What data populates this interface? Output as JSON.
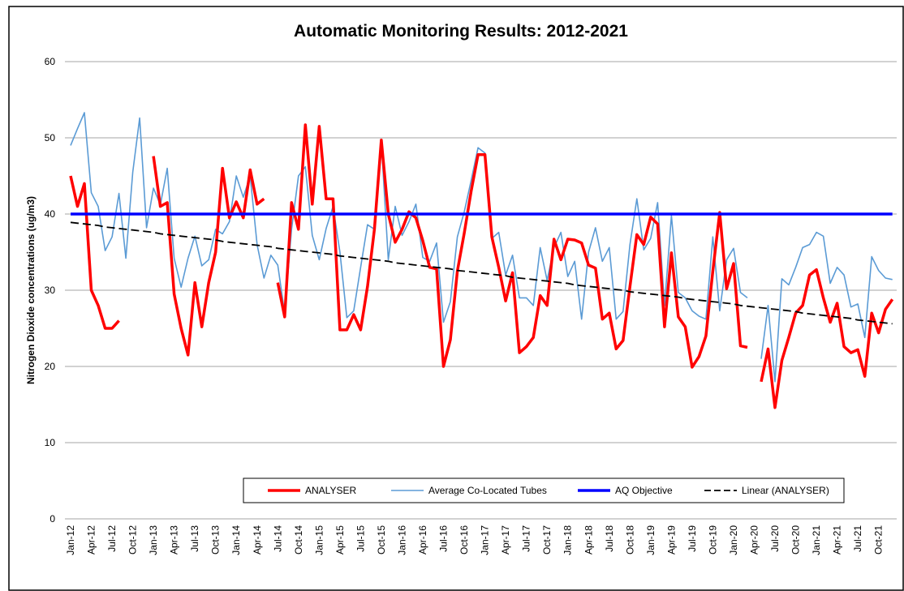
{
  "chart_data": {
    "type": "line",
    "title": "Automatic Monitoring Results:  2012-2021",
    "y_label": "Nitrogen Dioxide concentrations (ug/m3)",
    "categories": [
      "Jan-12",
      null,
      null,
      "Apr-12",
      null,
      null,
      "Jul-12",
      null,
      null,
      "Oct-12",
      null,
      null,
      "Jan-13",
      null,
      null,
      "Apr-13",
      null,
      null,
      "Jul-13",
      null,
      null,
      "Oct-13",
      null,
      null,
      "Jan-14",
      null,
      null,
      "Apr-14",
      null,
      null,
      "Jul-14",
      null,
      null,
      "Oct-14",
      null,
      null,
      "Jan-15",
      null,
      null,
      "Apr-15",
      null,
      null,
      "Jul-15",
      null,
      null,
      "Oct-15",
      null,
      null,
      "Jan-16",
      null,
      null,
      "Apr-16",
      null,
      null,
      "Jul-16",
      null,
      null,
      "Oct-16",
      null,
      null,
      "Jan-17",
      null,
      null,
      "Apr-17",
      null,
      null,
      "Jul-17",
      null,
      null,
      "Oct-17",
      null,
      null,
      "Jan-18",
      null,
      null,
      "Apr-18",
      null,
      null,
      "Jul-18",
      null,
      null,
      "Oct-18",
      null,
      null,
      "Jan-19",
      null,
      null,
      "Apr-19",
      null,
      null,
      "Jul-19",
      null,
      null,
      "Oct-19",
      null,
      null,
      "Jan-20",
      null,
      null,
      "Apr-20",
      null,
      null,
      "Jul-20",
      null,
      null,
      "Oct-20",
      null,
      null,
      "Jan-21",
      null,
      null,
      "Apr-21",
      null,
      null,
      "Jul-21",
      null,
      null,
      "Oct-21",
      null,
      null
    ],
    "series": [
      {
        "name": "ANALYSER",
        "color": "#ff0000",
        "width": 3.5,
        "dashed": false,
        "values": [
          45,
          41,
          44,
          30,
          28,
          25,
          25,
          26,
          null,
          null,
          null,
          null,
          47.6,
          41,
          41.5,
          29.5,
          25,
          21.5,
          31,
          25.2,
          31,
          35,
          46,
          39.5,
          41.6,
          39.5,
          45.8,
          41.3,
          42,
          null,
          31,
          26.5,
          41.5,
          38,
          51.7,
          41.3,
          51.5,
          42,
          42,
          24.8,
          24.8,
          26.8,
          24.8,
          30.5,
          38,
          49.7,
          40,
          36.3,
          38,
          40.3,
          39.5,
          36.5,
          33,
          32.8,
          20,
          23.5,
          32.5,
          37.5,
          43,
          47.8,
          47.8,
          37,
          33,
          28.6,
          32.3,
          21.8,
          22.6,
          23.8,
          29.3,
          28,
          36.7,
          34,
          36.7,
          36.6,
          36.2,
          33.3,
          32.9,
          26.2,
          27,
          22.3,
          23.4,
          30.5,
          37.3,
          36,
          39.6,
          38.7,
          25.2,
          34.9,
          26.5,
          25.2,
          19.9,
          21.3,
          24,
          32.5,
          40.2,
          30.2,
          33.5,
          22.7,
          22.5,
          null,
          18,
          22.3,
          14.6,
          20.8,
          23.8,
          27,
          28,
          32,
          32.7,
          29,
          25.8,
          28.3,
          22.6,
          21.8,
          22.2,
          18.7,
          27,
          24.4,
          27.5,
          28.8
        ]
      },
      {
        "name": "Average Co-Located Tubes",
        "color": "#5b9bd5",
        "width": 1.6,
        "dashed": false,
        "values": [
          49,
          51.2,
          53.3,
          42.8,
          41,
          35.2,
          37,
          42.7,
          34.2,
          45.5,
          52.6,
          38.2,
          43.4,
          41.2,
          46,
          34.2,
          30.4,
          34.2,
          37.1,
          33.2,
          34,
          38,
          37.4,
          39,
          45,
          42.2,
          45,
          36,
          31.6,
          34.6,
          33.3,
          27,
          38,
          45,
          46.2,
          37.2,
          34,
          38.1,
          41,
          35,
          26.4,
          27.3,
          33,
          38.6,
          38,
          49.5,
          34,
          41,
          37.2,
          39,
          41.3,
          34.3,
          33.8,
          36.2,
          25.8,
          28.5,
          37,
          40.3,
          44.4,
          48.7,
          48,
          36.8,
          37.6,
          32,
          34.6,
          29,
          29,
          28,
          35.6,
          31.3,
          35.6,
          37.6,
          31.8,
          33.8,
          26.2,
          35,
          38.2,
          33.8,
          35.6,
          26.2,
          27.2,
          36,
          42,
          35.3,
          36.8,
          41.5,
          28,
          39.8,
          29.7,
          29,
          27.3,
          26.6,
          26.2,
          37,
          27.3,
          34,
          35.5,
          29.7,
          29,
          null,
          21,
          28,
          18,
          31.5,
          30.7,
          33,
          35.6,
          36,
          37.6,
          37.1,
          30.9,
          33,
          32,
          27.8,
          28.2,
          23.8,
          34.4,
          32.6,
          31.6,
          31.4
        ]
      },
      {
        "name": "AQ Objective",
        "color": "#0000ff",
        "width": 3.5,
        "dashed": false,
        "values": [
          40,
          40,
          40,
          40,
          40,
          40,
          40,
          40,
          40,
          40,
          40,
          40,
          40,
          40,
          40,
          40,
          40,
          40,
          40,
          40,
          40,
          40,
          40,
          40,
          40,
          40,
          40,
          40,
          40,
          40,
          40,
          40,
          40,
          40,
          40,
          40,
          40,
          40,
          40,
          40,
          40,
          40,
          40,
          40,
          40,
          40,
          40,
          40,
          40,
          40,
          40,
          40,
          40,
          40,
          40,
          40,
          40,
          40,
          40,
          40,
          40,
          40,
          40,
          40,
          40,
          40,
          40,
          40,
          40,
          40,
          40,
          40,
          40,
          40,
          40,
          40,
          40,
          40,
          40,
          40,
          40,
          40,
          40,
          40,
          40,
          40,
          40,
          40,
          40,
          40,
          40,
          40,
          40,
          40,
          40,
          40,
          40,
          40,
          40,
          40,
          40,
          40,
          40,
          40,
          40,
          40,
          40,
          40,
          40,
          40,
          40,
          40,
          40,
          40,
          40,
          40,
          40,
          40,
          40,
          40
        ]
      },
      {
        "name": "Linear (ANALYSER)",
        "color": "#000000",
        "width": 1.8,
        "dashed": true,
        "values": [
          38.9,
          38.8,
          38.7,
          38.6,
          38.5,
          38.3,
          38.2,
          38.1,
          38.0,
          37.9,
          37.8,
          37.7,
          37.6,
          37.4,
          37.3,
          37.2,
          37.1,
          37.0,
          36.9,
          36.8,
          36.7,
          36.6,
          36.4,
          36.3,
          36.2,
          36.1,
          36.0,
          35.9,
          35.8,
          35.7,
          35.5,
          35.4,
          35.3,
          35.2,
          35.1,
          35.0,
          34.9,
          34.8,
          34.7,
          34.5,
          34.4,
          34.3,
          34.2,
          34.1,
          34.0,
          33.9,
          33.8,
          33.6,
          33.5,
          33.4,
          33.3,
          33.2,
          33.1,
          33.0,
          32.9,
          32.8,
          32.6,
          32.5,
          32.4,
          32.3,
          32.2,
          32.1,
          32.0,
          31.9,
          31.7,
          31.6,
          31.5,
          31.4,
          31.3,
          31.2,
          31.1,
          31.0,
          30.9,
          30.7,
          30.6,
          30.5,
          30.4,
          30.3,
          30.2,
          30.1,
          30.0,
          29.8,
          29.7,
          29.6,
          29.5,
          29.4,
          29.3,
          29.2,
          29.1,
          28.9,
          28.8,
          28.7,
          28.6,
          28.5,
          28.4,
          28.3,
          28.2,
          28.0,
          27.9,
          27.8,
          27.7,
          27.6,
          27.5,
          27.4,
          27.3,
          27.2,
          27.0,
          26.9,
          26.8,
          26.7,
          26.6,
          26.5,
          26.4,
          26.3,
          26.1,
          26.0,
          25.9,
          25.8,
          25.7,
          25.6
        ]
      }
    ],
    "ylim": [
      0,
      60
    ],
    "yticks": [
      0,
      10,
      20,
      30,
      40,
      50,
      60
    ],
    "grid": true,
    "legend": "bottom"
  }
}
